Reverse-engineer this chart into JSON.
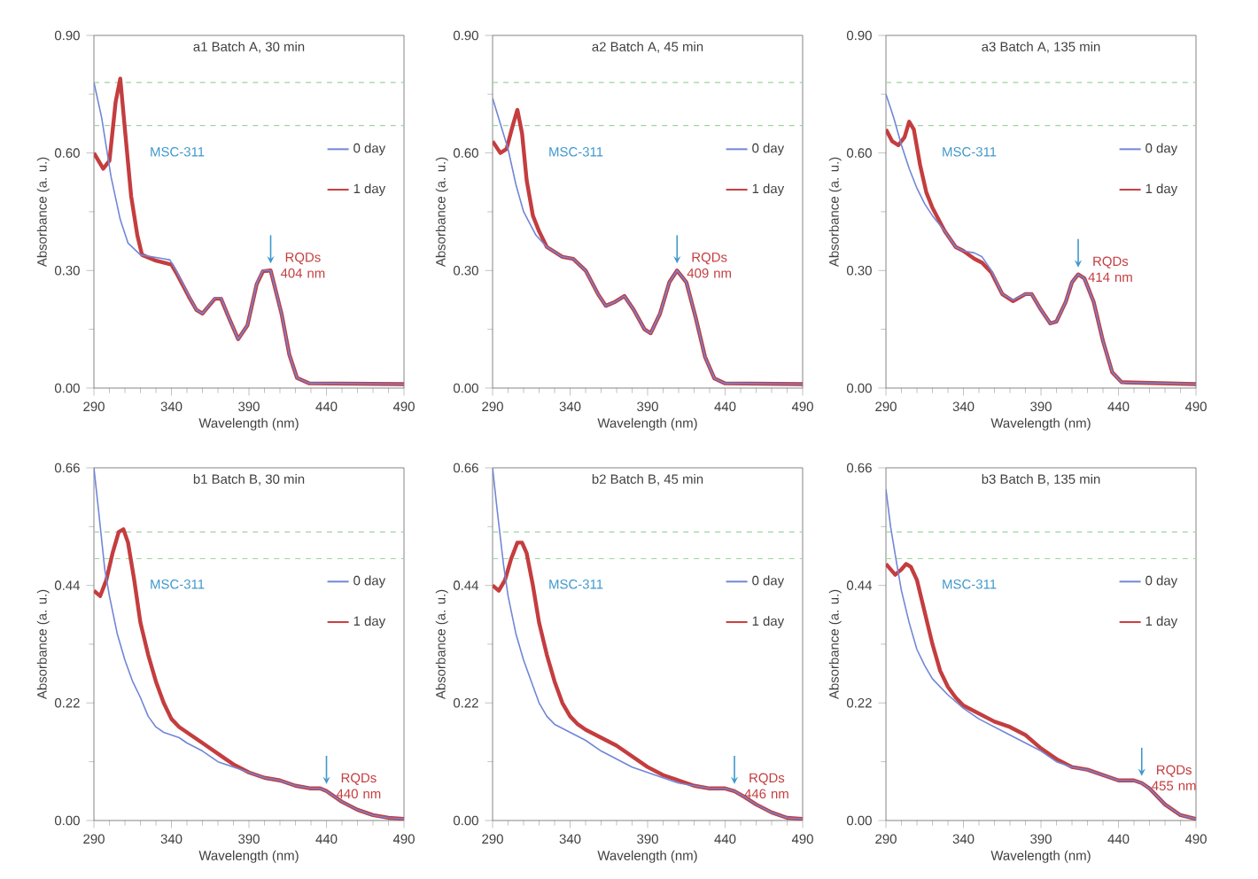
{
  "chart_data": [
    {
      "type": "line",
      "title": "a1  Batch A, 30 min",
      "xlabel": "Wavelength (nm)",
      "ylabel": "Absorbance (a. u.)",
      "xlim": [
        290,
        490
      ],
      "ylim": [
        0,
        0.9
      ],
      "xticks": [
        290,
        340,
        390,
        440,
        490
      ],
      "yticks": [
        {
          "value": 0,
          "label": "0.00"
        },
        {
          "value": 0.3,
          "label": "0.30"
        },
        {
          "value": 0.6,
          "label": "0.60"
        },
        {
          "value": 0.9,
          "label": "0.90"
        }
      ],
      "legend": "right",
      "ref_lines": [
        {
          "axis": "y",
          "value": 0.78,
          "color": "#9fd49f",
          "line_style": "dashed"
        },
        {
          "axis": "y",
          "value": 0.67,
          "color": "#9fd49f",
          "line_style": "dashed"
        }
      ],
      "annotations": [
        "MSC-311",
        {
          "text": "RQDs 404 nm",
          "x": 404,
          "y": 0.3
        }
      ],
      "series": [
        {
          "name": "0 day",
          "color": "#7186d6",
          "x": [
            290,
            295,
            301,
            307,
            312,
            320,
            335,
            339,
            343,
            351,
            356,
            360,
            368,
            372,
            377,
            383,
            389,
            395,
            399,
            404,
            411,
            416,
            421,
            429,
            490
          ],
          "values": [
            0.78,
            0.69,
            0.54,
            0.43,
            0.37,
            0.34,
            0.33,
            0.327,
            0.3,
            0.237,
            0.2,
            0.19,
            0.23,
            0.23,
            0.18,
            0.125,
            0.16,
            0.267,
            0.3,
            0.3,
            0.19,
            0.086,
            0.026,
            0.012,
            0.01
          ]
        },
        {
          "name": "1 day",
          "color": "#c43d3f",
          "x": [
            290,
            296,
            300,
            304,
            307,
            310,
            314,
            318,
            321,
            330,
            340,
            343,
            351,
            356,
            360,
            368,
            372,
            377,
            383,
            389,
            395,
            399,
            404,
            411,
            416,
            421,
            429,
            490
          ],
          "values": [
            0.6,
            0.56,
            0.58,
            0.73,
            0.79,
            0.66,
            0.49,
            0.39,
            0.34,
            0.325,
            0.315,
            0.295,
            0.235,
            0.2,
            0.19,
            0.228,
            0.228,
            0.18,
            0.125,
            0.16,
            0.265,
            0.298,
            0.3,
            0.19,
            0.086,
            0.026,
            0.012,
            0.01
          ]
        }
      ]
    },
    {
      "type": "line",
      "title": "a2  Batch A, 45 min",
      "xlabel": "Wavelength (nm)",
      "ylabel": "Absorbance (a. u.)",
      "xlim": [
        290,
        490
      ],
      "ylim": [
        0,
        0.9
      ],
      "xticks": [
        290,
        340,
        390,
        440,
        490
      ],
      "yticks": [
        {
          "value": 0,
          "label": "0.00"
        },
        {
          "value": 0.3,
          "label": "0.30"
        },
        {
          "value": 0.6,
          "label": "0.60"
        },
        {
          "value": 0.9,
          "label": "0.90"
        }
      ],
      "legend": "right",
      "ref_lines": [
        {
          "axis": "y",
          "value": 0.78,
          "color": "#9fd49f",
          "line_style": "dashed"
        },
        {
          "axis": "y",
          "value": 0.67,
          "color": "#9fd49f",
          "line_style": "dashed"
        }
      ],
      "annotations": [
        "MSC-311",
        {
          "text": "RQDs 409 nm",
          "x": 409,
          "y": 0.3
        }
      ],
      "series": [
        {
          "name": "0 day",
          "color": "#7186d6",
          "x": [
            290,
            300,
            305,
            310,
            318,
            325,
            335,
            342,
            350,
            358,
            363,
            369,
            375,
            381,
            388,
            392,
            398,
            404,
            409,
            415,
            421,
            427,
            433,
            440,
            490
          ],
          "values": [
            0.74,
            0.61,
            0.52,
            0.45,
            0.39,
            0.36,
            0.335,
            0.33,
            0.3,
            0.24,
            0.21,
            0.22,
            0.235,
            0.2,
            0.15,
            0.14,
            0.19,
            0.27,
            0.3,
            0.27,
            0.18,
            0.08,
            0.025,
            0.012,
            0.01
          ]
        },
        {
          "name": "1 day",
          "color": "#c43d3f",
          "x": [
            290,
            295,
            299,
            303,
            306,
            309,
            312,
            316,
            320,
            325,
            335,
            342,
            350,
            358,
            363,
            369,
            375,
            381,
            388,
            392,
            398,
            404,
            409,
            415,
            421,
            427,
            433,
            440,
            490
          ],
          "values": [
            0.63,
            0.6,
            0.61,
            0.67,
            0.71,
            0.65,
            0.53,
            0.44,
            0.4,
            0.36,
            0.335,
            0.33,
            0.3,
            0.24,
            0.21,
            0.22,
            0.235,
            0.2,
            0.15,
            0.14,
            0.19,
            0.27,
            0.3,
            0.27,
            0.18,
            0.08,
            0.025,
            0.012,
            0.01
          ]
        }
      ]
    },
    {
      "type": "line",
      "title": "a3  Batch A, 135 min",
      "xlabel": "Wavelength (nm)",
      "ylabel": "Absorbance (a. u.)",
      "xlim": [
        290,
        490
      ],
      "ylim": [
        0,
        0.9
      ],
      "xticks": [
        290,
        340,
        390,
        440,
        490
      ],
      "yticks": [
        {
          "value": 0,
          "label": "0.00"
        },
        {
          "value": 0.3,
          "label": "0.30"
        },
        {
          "value": 0.6,
          "label": "0.60"
        },
        {
          "value": 0.9,
          "label": "0.90"
        }
      ],
      "legend": "right",
      "ref_lines": [
        {
          "axis": "y",
          "value": 0.78,
          "color": "#9fd49f",
          "line_style": "dashed"
        },
        {
          "axis": "y",
          "value": 0.67,
          "color": "#9fd49f",
          "line_style": "dashed"
        }
      ],
      "annotations": [
        "MSC-311",
        {
          "text": "RQDs 414 nm",
          "x": 414,
          "y": 0.29
        }
      ],
      "series": [
        {
          "name": "0 day",
          "color": "#7186d6",
          "x": [
            290,
            295,
            300,
            305,
            310,
            315,
            320,
            328,
            335,
            340,
            347,
            352,
            358,
            365,
            372,
            380,
            384,
            390,
            396,
            400,
            406,
            410,
            414,
            418,
            424,
            430,
            436,
            442,
            490
          ],
          "values": [
            0.75,
            0.69,
            0.62,
            0.56,
            0.51,
            0.47,
            0.44,
            0.4,
            0.36,
            0.35,
            0.345,
            0.335,
            0.3,
            0.24,
            0.225,
            0.24,
            0.24,
            0.2,
            0.165,
            0.17,
            0.22,
            0.27,
            0.29,
            0.28,
            0.22,
            0.12,
            0.04,
            0.015,
            0.01
          ]
        },
        {
          "name": "1 day",
          "color": "#c43d3f",
          "x": [
            290,
            294,
            298,
            302,
            305,
            308,
            312,
            316,
            320,
            328,
            335,
            340,
            347,
            352,
            358,
            365,
            372,
            380,
            384,
            390,
            396,
            400,
            406,
            410,
            414,
            418,
            424,
            430,
            436,
            442,
            490
          ],
          "values": [
            0.66,
            0.63,
            0.62,
            0.64,
            0.68,
            0.66,
            0.57,
            0.5,
            0.46,
            0.4,
            0.36,
            0.35,
            0.33,
            0.32,
            0.295,
            0.24,
            0.222,
            0.24,
            0.24,
            0.2,
            0.165,
            0.17,
            0.22,
            0.27,
            0.29,
            0.28,
            0.22,
            0.12,
            0.04,
            0.015,
            0.01
          ]
        }
      ]
    },
    {
      "type": "line",
      "title": "b1  Batch B, 30 min",
      "xlabel": "Wavelength (nm)",
      "ylabel": "Absorbance (a. u.)",
      "xlim": [
        290,
        490
      ],
      "ylim": [
        0,
        0.66
      ],
      "xticks": [
        290,
        340,
        390,
        440,
        490
      ],
      "yticks": [
        {
          "value": 0,
          "label": "0.00"
        },
        0.22,
        0.44,
        0.66
      ],
      "legend": "right",
      "ref_lines": [
        {
          "axis": "y",
          "value": 0.54,
          "color": "#9fd49f",
          "line_style": "dashed"
        },
        {
          "axis": "y",
          "value": 0.49,
          "color": "#9fd49f",
          "line_style": "dashed"
        }
      ],
      "annotations": [
        "MSC-311",
        {
          "text": "RQDs 440 nm",
          "x": 440,
          "y": 0.055
        }
      ],
      "series": [
        {
          "name": "0 day",
          "color": "#7186d6",
          "x": [
            290,
            293,
            297,
            300,
            305,
            310,
            315,
            320,
            325,
            330,
            335,
            340,
            345,
            350,
            360,
            370,
            380,
            390,
            400,
            410,
            420,
            430,
            436,
            440,
            445,
            450,
            460,
            470,
            480,
            490
          ],
          "values": [
            0.66,
            0.58,
            0.47,
            0.42,
            0.35,
            0.3,
            0.26,
            0.23,
            0.195,
            0.175,
            0.165,
            0.16,
            0.155,
            0.145,
            0.13,
            0.11,
            0.1,
            0.09,
            0.08,
            0.075,
            0.065,
            0.06,
            0.06,
            0.055,
            0.045,
            0.035,
            0.02,
            0.01,
            0.005,
            0.003
          ]
        },
        {
          "name": "1 day",
          "color": "#c43d3f",
          "x": [
            290,
            294,
            298,
            302,
            306,
            309,
            312,
            316,
            320,
            325,
            330,
            335,
            340,
            345,
            350,
            360,
            370,
            380,
            390,
            400,
            410,
            420,
            430,
            436,
            440,
            445,
            450,
            460,
            470,
            480,
            490
          ],
          "values": [
            0.43,
            0.42,
            0.45,
            0.5,
            0.54,
            0.545,
            0.52,
            0.45,
            0.37,
            0.31,
            0.26,
            0.22,
            0.19,
            0.175,
            0.165,
            0.145,
            0.125,
            0.105,
            0.09,
            0.08,
            0.075,
            0.065,
            0.06,
            0.06,
            0.055,
            0.045,
            0.035,
            0.02,
            0.01,
            0.005,
            0.003
          ]
        }
      ]
    },
    {
      "type": "line",
      "title": "b2  Batch B, 45 min",
      "xlabel": "Wavelength (nm)",
      "ylabel": "Absorbance (a. u.)",
      "xlim": [
        290,
        490
      ],
      "ylim": [
        0,
        0.66
      ],
      "xticks": [
        290,
        340,
        390,
        440,
        490
      ],
      "yticks": [
        {
          "value": 0,
          "label": "0.00"
        },
        0.22,
        0.44,
        0.66
      ],
      "legend": "right",
      "ref_lines": [
        {
          "axis": "y",
          "value": 0.54,
          "color": "#9fd49f",
          "line_style": "dashed"
        },
        {
          "axis": "y",
          "value": 0.49,
          "color": "#9fd49f",
          "line_style": "dashed"
        }
      ],
      "annotations": [
        "MSC-311",
        {
          "text": "RQDs 446 nm",
          "x": 446,
          "y": 0.055
        }
      ],
      "series": [
        {
          "name": "0 day",
          "color": "#7186d6",
          "x": [
            290,
            293,
            297,
            300,
            305,
            310,
            315,
            320,
            325,
            330,
            340,
            350,
            360,
            370,
            380,
            390,
            400,
            410,
            420,
            430,
            440,
            446,
            452,
            460,
            470,
            480,
            490
          ],
          "values": [
            0.66,
            0.58,
            0.48,
            0.42,
            0.35,
            0.3,
            0.26,
            0.22,
            0.195,
            0.18,
            0.165,
            0.15,
            0.13,
            0.115,
            0.1,
            0.09,
            0.08,
            0.07,
            0.065,
            0.06,
            0.06,
            0.055,
            0.045,
            0.03,
            0.015,
            0.005,
            0.003
          ]
        },
        {
          "name": "1 day",
          "color": "#c43d3f",
          "x": [
            290,
            294,
            298,
            302,
            306,
            309,
            312,
            316,
            320,
            325,
            330,
            335,
            340,
            345,
            350,
            360,
            370,
            380,
            390,
            400,
            410,
            420,
            430,
            440,
            446,
            452,
            460,
            470,
            480,
            490
          ],
          "values": [
            0.44,
            0.43,
            0.45,
            0.49,
            0.52,
            0.52,
            0.5,
            0.44,
            0.37,
            0.31,
            0.26,
            0.22,
            0.195,
            0.18,
            0.17,
            0.155,
            0.14,
            0.12,
            0.1,
            0.085,
            0.075,
            0.065,
            0.06,
            0.06,
            0.055,
            0.045,
            0.03,
            0.015,
            0.005,
            0.003
          ]
        }
      ]
    },
    {
      "type": "line",
      "title": "b3  Batch B, 135 min",
      "xlabel": "Wavelength (nm)",
      "ylabel": "Absorbance (a. u.)",
      "xlim": [
        290,
        490
      ],
      "ylim": [
        0,
        0.66
      ],
      "xticks": [
        290,
        340,
        390,
        440,
        490
      ],
      "yticks": [
        {
          "value": 0,
          "label": "0.00"
        },
        0.22,
        0.44,
        0.66
      ],
      "legend": "right",
      "ref_lines": [
        {
          "axis": "y",
          "value": 0.54,
          "color": "#9fd49f",
          "line_style": "dashed"
        },
        {
          "axis": "y",
          "value": 0.49,
          "color": "#9fd49f",
          "line_style": "dashed"
        }
      ],
      "annotations": [
        "MSC-311",
        {
          "text": "RQDs 455 nm",
          "x": 455,
          "y": 0.07
        }
      ],
      "series": [
        {
          "name": "0 day",
          "color": "#7186d6",
          "x": [
            290,
            293,
            297,
            300,
            305,
            310,
            315,
            320,
            330,
            340,
            350,
            360,
            370,
            380,
            390,
            400,
            410,
            420,
            430,
            440,
            450,
            455,
            460,
            470,
            480,
            490
          ],
          "values": [
            0.62,
            0.55,
            0.48,
            0.43,
            0.37,
            0.32,
            0.29,
            0.265,
            0.235,
            0.21,
            0.19,
            0.175,
            0.16,
            0.145,
            0.13,
            0.11,
            0.1,
            0.095,
            0.085,
            0.075,
            0.075,
            0.07,
            0.06,
            0.03,
            0.01,
            0.003
          ]
        },
        {
          "name": "1 day",
          "color": "#c43d3f",
          "x": [
            290,
            293,
            296,
            300,
            303,
            306,
            310,
            315,
            320,
            325,
            330,
            335,
            340,
            350,
            360,
            370,
            380,
            390,
            400,
            410,
            420,
            430,
            440,
            450,
            455,
            460,
            470,
            480,
            490
          ],
          "values": [
            0.48,
            0.47,
            0.46,
            0.47,
            0.48,
            0.475,
            0.45,
            0.39,
            0.33,
            0.28,
            0.25,
            0.23,
            0.215,
            0.2,
            0.185,
            0.175,
            0.16,
            0.135,
            0.115,
            0.1,
            0.095,
            0.085,
            0.075,
            0.075,
            0.07,
            0.06,
            0.03,
            0.01,
            0.003
          ]
        }
      ]
    }
  ]
}
